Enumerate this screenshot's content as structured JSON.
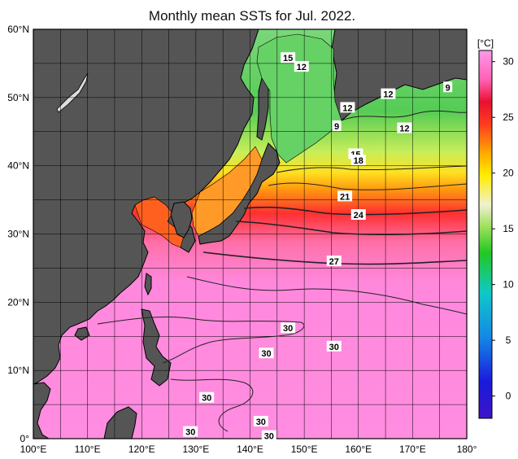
{
  "title": "Monthly mean SSTs for Jul. 2022.",
  "lat_axis": {
    "ticks": [
      {
        "value": 60,
        "label": "60°N"
      },
      {
        "value": 50,
        "label": "50°N"
      },
      {
        "value": 40,
        "label": "40°N"
      },
      {
        "value": 30,
        "label": "30°N"
      },
      {
        "value": 20,
        "label": "20°N"
      },
      {
        "value": 10,
        "label": "10°N"
      },
      {
        "value": 0,
        "label": "0°"
      }
    ]
  },
  "lon_axis": {
    "ticks": [
      {
        "value": 100,
        "label": "100°E"
      },
      {
        "value": 110,
        "label": "110°E"
      },
      {
        "value": 120,
        "label": "120°E"
      },
      {
        "value": 130,
        "label": "130°E"
      },
      {
        "value": 140,
        "label": "140°E"
      },
      {
        "value": 150,
        "label": "150°E"
      },
      {
        "value": 160,
        "label": "160°E"
      },
      {
        "value": 170,
        "label": "170°E"
      },
      {
        "value": 180,
        "label": "180°"
      }
    ]
  },
  "colorbar": {
    "unit_label": "[°C]",
    "ticks": [
      {
        "value": 30,
        "label": "30"
      },
      {
        "value": 25,
        "label": "25"
      },
      {
        "value": 20,
        "label": "20"
      },
      {
        "value": 15,
        "label": "15"
      },
      {
        "value": 10,
        "label": "10"
      },
      {
        "value": 5,
        "label": "5"
      },
      {
        "value": 0,
        "label": "0"
      }
    ],
    "min": -2,
    "max": 31
  },
  "contour_labels": [
    {
      "text": "15",
      "lon": 147.0,
      "lat": 55.8
    },
    {
      "text": "12",
      "lon": 149.5,
      "lat": 54.5
    },
    {
      "text": "9",
      "lon": 176.5,
      "lat": 51.5
    },
    {
      "text": "12",
      "lon": 165.5,
      "lat": 50.5
    },
    {
      "text": "12",
      "lon": 158.0,
      "lat": 48.5
    },
    {
      "text": "9",
      "lon": 156.0,
      "lat": 45.8
    },
    {
      "text": "12",
      "lon": 168.5,
      "lat": 45.5
    },
    {
      "text": "15",
      "lon": 159.5,
      "lat": 41.7
    },
    {
      "text": "18",
      "lon": 160.0,
      "lat": 40.8
    },
    {
      "text": "21",
      "lon": 157.5,
      "lat": 35.5
    },
    {
      "text": "24",
      "lon": 160.0,
      "lat": 32.8
    },
    {
      "text": "27",
      "lon": 155.5,
      "lat": 26.0
    },
    {
      "text": "30",
      "lon": 147.0,
      "lat": 16.2
    },
    {
      "text": "30",
      "lon": 155.5,
      "lat": 13.5
    },
    {
      "text": "30",
      "lon": 143.0,
      "lat": 12.5
    },
    {
      "text": "30",
      "lon": 132.0,
      "lat": 6.0
    },
    {
      "text": "30",
      "lon": 142.0,
      "lat": 2.5
    },
    {
      "text": "30",
      "lon": 129.0,
      "lat": 1.0
    },
    {
      "text": "30",
      "lon": 143.5,
      "lat": 0.4
    }
  ],
  "colors": {
    "land": "#555555",
    "frame": "#000000",
    "contour": "#222222"
  }
}
